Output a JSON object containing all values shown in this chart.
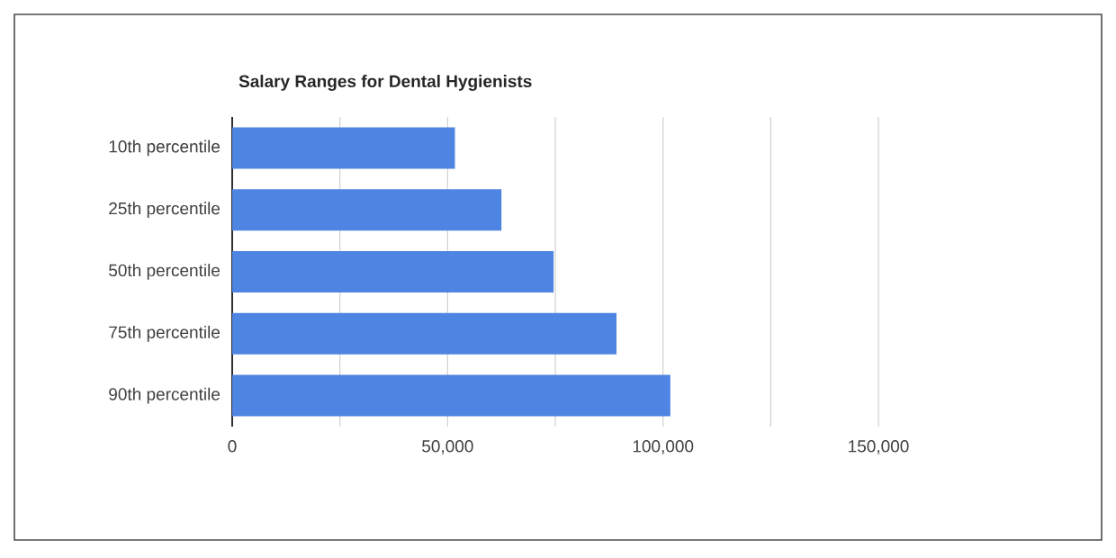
{
  "chart_data": {
    "type": "bar",
    "orientation": "horizontal",
    "title": "Salary Ranges for Dental Hygienists",
    "categories": [
      "10th percentile",
      "25th percentile",
      "50th percentile",
      "75th percentile",
      "90th percentile"
    ],
    "values": [
      51700,
      62500,
      74600,
      89200,
      101700
    ],
    "color": "#4e84e2",
    "xlim": [
      0,
      150000
    ],
    "xticks": [
      0,
      {
        "value": 25000,
        "label": null
      },
      {
        "value": 50000,
        "label": "50,000"
      },
      {
        "value": 75000,
        "label": null
      },
      {
        "value": 100000,
        "label": "100,000"
      },
      {
        "value": 125000,
        "label": null
      },
      {
        "value": 150000,
        "label": "150,000"
      }
    ],
    "grid": "x"
  }
}
